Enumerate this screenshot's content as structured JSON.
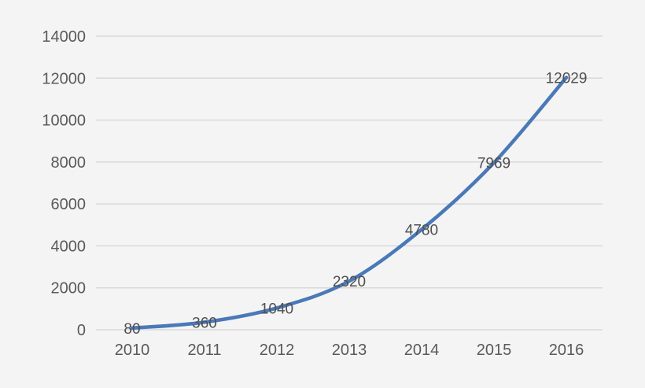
{
  "chart_data": {
    "type": "line",
    "title": "",
    "xlabel": "",
    "ylabel": "",
    "categories": [
      "2010",
      "2011",
      "2012",
      "2013",
      "2014",
      "2015",
      "2016"
    ],
    "series": [
      {
        "values": [
          80,
          360,
          1040,
          2320,
          4780,
          7969,
          12029
        ],
        "data_labels": [
          "80",
          "360",
          "1040",
          "2320",
          "4780",
          "7969",
          "12029"
        ],
        "smooth": true
      }
    ],
    "ylim": [
      0,
      14000
    ],
    "ytick_labels": [
      "0",
      "2000",
      "4000",
      "6000",
      "8000",
      "10000",
      "12000",
      "14000"
    ],
    "grid": "horizontal",
    "legend": "none",
    "colors": {
      "line": "#4a79b8",
      "grid": "#d9d9d9",
      "axis_text": "#595959",
      "label_text": "#4f4f4f",
      "background": "#f5f4f5"
    }
  }
}
